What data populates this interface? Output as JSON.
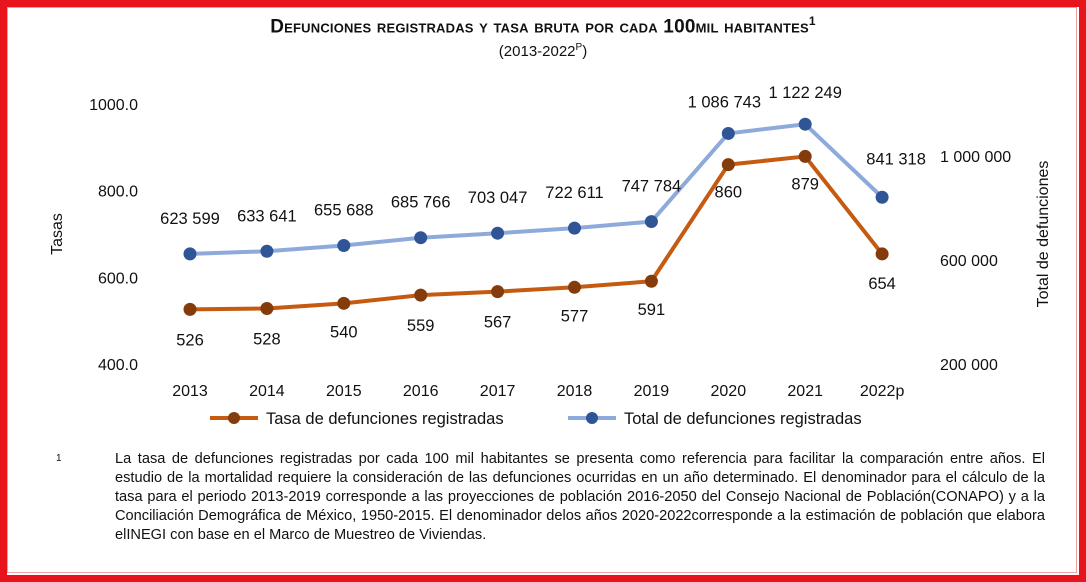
{
  "title": "Defunciones registradas y tasa bruta por cada 100mil habitantes",
  "title_sup": "1",
  "subtitle": "(2013-2022",
  "subtitle_sup": "P",
  "subtitle_end": ")",
  "chart_data": {
    "type": "line",
    "title": "Defunciones registradas y tasa bruta por cada 100mil habitantes",
    "subtitle": "(2013-2022P)",
    "categories": [
      "2013",
      "2014",
      "2015",
      "2016",
      "2017",
      "2018",
      "2019",
      "2020",
      "2021",
      "2022p"
    ],
    "series": [
      {
        "name": "Tasa de defunciones registradas",
        "axis": "left",
        "color": "#c55a11",
        "values": [
          526,
          528,
          540,
          559,
          567,
          577,
          591,
          860,
          879,
          654
        ],
        "labels": [
          "526",
          "528",
          "540",
          "559",
          "567",
          "577",
          "591",
          "860",
          "879",
          "654"
        ]
      },
      {
        "name": "Total de defunciones registradas",
        "axis": "right",
        "color": "#8eaadb",
        "marker_color": "#2f5597",
        "values": [
          623599,
          633641,
          655688,
          685766,
          703047,
          722611,
          747784,
          1086743,
          1122249,
          841318
        ],
        "labels": [
          "623 599",
          "633 641",
          "655 688",
          "685 766",
          "703 047",
          "722 611",
          "747 784",
          "1 086 743",
          "1 122 249",
          "841 318"
        ]
      }
    ],
    "ylabel": "Tasas",
    "y2label": "Total de defunciones",
    "ylim": [
      400,
      1000
    ],
    "y2lim": [
      200000,
      1200000
    ],
    "yticks": [
      "400.0",
      "600.0",
      "800.0",
      "1000.0"
    ],
    "y2ticks": [
      "200 000",
      "600 000",
      "1 000 000"
    ],
    "legend": "bottom",
    "grid": false
  },
  "footnote": {
    "mark": "1",
    "text": "La tasa de defunciones registradas por cada 100 mil habitantes se presenta como referencia para facilitar la comparación entre años. El estudio de la mortalidad requiere la consideración de las defunciones ocurridas en un año determinado. El denominador para el cálculo de la tasa para el periodo 2013-2019 corresponde a las proyecciones de población 2016-2050 del Consejo Nacional de Población(CONAPO) y a la Conciliación Demográfica de México, 1950-2015. El denominador delos años 2020-2022corresponde a la estimación de población que elabora elINEGI con base en el Marco de Muestreo de Viviendas."
  }
}
